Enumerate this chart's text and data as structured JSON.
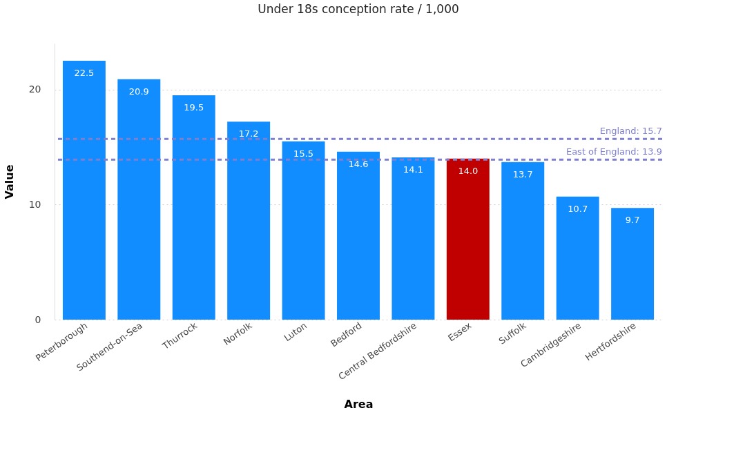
{
  "chart_data": {
    "type": "bar",
    "title": "Under 18s conception rate / 1,000",
    "xlabel": "Area",
    "ylabel": "Value",
    "categories": [
      "Peterborough",
      "Southend-on-Sea",
      "Thurrock",
      "Norfolk",
      "Luton",
      "Bedford",
      "Central Bedfordshire",
      "Essex",
      "Suffolk",
      "Cambridgeshire",
      "Hertfordshire"
    ],
    "values": [
      22.5,
      20.9,
      19.5,
      17.2,
      15.5,
      14.6,
      14.1,
      14.0,
      13.7,
      10.7,
      9.7
    ],
    "colors": [
      "#118dff",
      "#118dff",
      "#118dff",
      "#118dff",
      "#118dff",
      "#118dff",
      "#118dff",
      "#c00000",
      "#118dff",
      "#118dff",
      "#118dff"
    ],
    "value_labels": [
      "22.5",
      "20.9",
      "19.5",
      "17.2",
      "15.5",
      "14.6",
      "14.1",
      "14.0",
      "13.7",
      "10.7",
      "9.7"
    ],
    "ylim": [
      0,
      24
    ],
    "yticks": [
      0,
      10,
      20
    ],
    "grid": "y",
    "ref_lines": [
      {
        "axis": "y",
        "value": 15.7,
        "label": "England: 15.7",
        "color": "#7f7fcf",
        "line_style": "dashed"
      },
      {
        "axis": "y",
        "value": 13.9,
        "label": "East of England: 13.9",
        "color": "#7f7fcf",
        "line_style": "dashed"
      }
    ]
  }
}
